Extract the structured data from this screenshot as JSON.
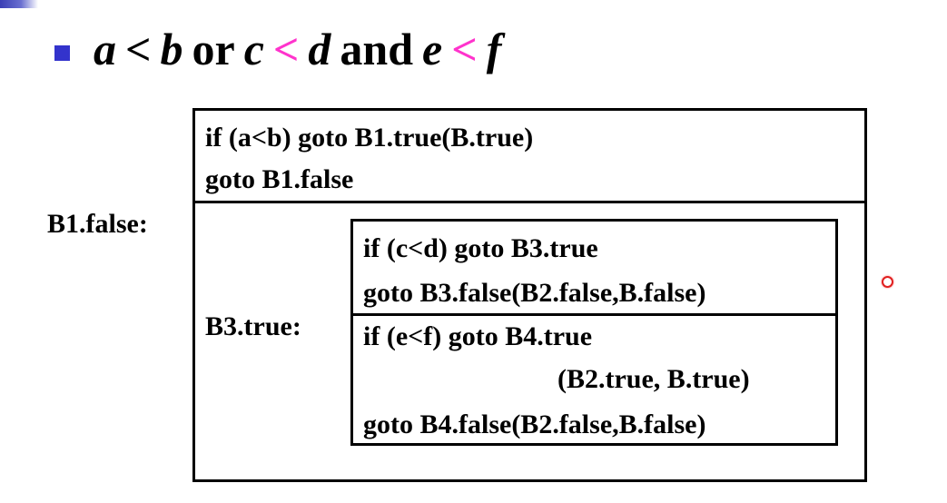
{
  "title": {
    "a": "a",
    "lt1": "<",
    "b": "b",
    "or": "or",
    "c": "c",
    "lt2": "<",
    "d": "d",
    "and": "and",
    "e": "e",
    "lt3": "<",
    "f": "f"
  },
  "block_b1": {
    "line1": "if (a<b) goto B1.true(B.true)",
    "line2": "goto B1.false"
  },
  "labels": {
    "b1_false": "B1.false:",
    "b3_true": "B3.true:"
  },
  "block_b3": {
    "line1": "if (c<d) goto B3.true",
    "line2": "goto B3.false(B2.false,B.false)"
  },
  "block_b4": {
    "line1": "if (e<f) goto B4.true",
    "line2": "(B2.true, B.true)",
    "line3": "goto B4.false(B2.false,B.false)"
  },
  "colors": {
    "bullet": "#3333cc",
    "highlight": "#ff33cc",
    "marker": "#e02020"
  }
}
